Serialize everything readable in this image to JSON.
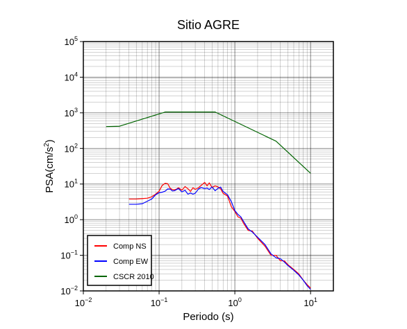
{
  "chart_data": {
    "type": "line",
    "title": "Sitio AGRE",
    "xlabel": "Periodo (s)",
    "ylabel_base": "PSA(cm/s",
    "ylabel_sup": "2",
    "ylabel_close": ")",
    "x_scale": "log",
    "y_scale": "log",
    "xlim": [
      0.01,
      20
    ],
    "ylim": [
      0.01,
      100000
    ],
    "grid": true,
    "legend_position": "bottom-left",
    "x_ticks": [
      {
        "value": 0.01,
        "base": "10",
        "exp": "−2"
      },
      {
        "value": 0.1,
        "base": "10",
        "exp": "−1"
      },
      {
        "value": 1,
        "base": "10",
        "exp": "0"
      },
      {
        "value": 10,
        "base": "10",
        "exp": "1"
      }
    ],
    "y_ticks": [
      {
        "value": 0.01,
        "base": "10",
        "exp": "−2"
      },
      {
        "value": 0.1,
        "base": "10",
        "exp": "−1"
      },
      {
        "value": 1,
        "base": "10",
        "exp": "0"
      },
      {
        "value": 10,
        "base": "10",
        "exp": "1"
      },
      {
        "value": 100,
        "base": "10",
        "exp": "2"
      },
      {
        "value": 1000,
        "base": "10",
        "exp": "3"
      },
      {
        "value": 10000,
        "base": "10",
        "exp": "4"
      },
      {
        "value": 100000,
        "base": "10",
        "exp": "5"
      }
    ],
    "series": [
      {
        "name": "Comp NS",
        "color": "#ff0000",
        "x": [
          0.04,
          0.05,
          0.06,
          0.07,
          0.08,
          0.09,
          0.1,
          0.11,
          0.12,
          0.13,
          0.14,
          0.15,
          0.16,
          0.17,
          0.18,
          0.2,
          0.22,
          0.24,
          0.26,
          0.28,
          0.3,
          0.33,
          0.36,
          0.4,
          0.43,
          0.46,
          0.5,
          0.55,
          0.6,
          0.65,
          0.7,
          0.8,
          0.9,
          1.0,
          1.1,
          1.2,
          1.3,
          1.5,
          1.7,
          2.0,
          2.5,
          3.0,
          3.5,
          4.0,
          4.5,
          5.0,
          6.0,
          7.0,
          8.0,
          9.0,
          10.0
        ],
        "y": [
          3.8,
          3.8,
          3.9,
          4.0,
          4.4,
          5.2,
          6.3,
          9.2,
          10.5,
          10.2,
          7.6,
          7.0,
          6.9,
          7.2,
          7.9,
          6.7,
          8.5,
          7.4,
          6.2,
          7.9,
          7.1,
          7.8,
          9.2,
          11.1,
          8.9,
          10.8,
          8.0,
          8.9,
          8.3,
          7.3,
          5.5,
          4.6,
          2.3,
          1.7,
          1.2,
          1.1,
          0.8,
          0.5,
          0.48,
          0.3,
          0.18,
          0.1,
          0.1,
          0.07,
          0.07,
          0.055,
          0.04,
          0.03,
          0.02,
          0.015,
          0.012
        ]
      },
      {
        "name": "Comp EW",
        "color": "#0000ff",
        "x": [
          0.04,
          0.05,
          0.06,
          0.07,
          0.08,
          0.09,
          0.1,
          0.11,
          0.12,
          0.13,
          0.14,
          0.15,
          0.16,
          0.17,
          0.18,
          0.2,
          0.22,
          0.24,
          0.26,
          0.28,
          0.3,
          0.33,
          0.36,
          0.4,
          0.43,
          0.46,
          0.5,
          0.55,
          0.6,
          0.65,
          0.7,
          0.8,
          0.9,
          1.0,
          1.1,
          1.2,
          1.3,
          1.5,
          1.7,
          2.0,
          2.5,
          3.0,
          3.5,
          4.0,
          4.5,
          5.0,
          6.0,
          7.0,
          8.0,
          9.0,
          10.0
        ],
        "y": [
          2.7,
          2.7,
          2.8,
          3.3,
          3.8,
          5.0,
          5.7,
          5.9,
          6.3,
          7.3,
          7.2,
          6.4,
          6.5,
          7.0,
          7.5,
          6.0,
          6.7,
          5.2,
          5.6,
          5.2,
          5.5,
          7.2,
          8.0,
          7.4,
          7.7,
          7.0,
          8.3,
          6.5,
          7.6,
          8.2,
          6.2,
          5.0,
          3.2,
          1.8,
          1.4,
          1.2,
          0.9,
          0.55,
          0.45,
          0.32,
          0.2,
          0.11,
          0.085,
          0.08,
          0.065,
          0.052,
          0.038,
          0.028,
          0.02,
          0.014,
          0.011
        ]
      },
      {
        "name": "CSCR 2010",
        "color": "#006400",
        "x": [
          0.02,
          0.03,
          0.12,
          0.55,
          3.5,
          10.0
        ],
        "y": [
          410,
          420,
          1050,
          1050,
          160,
          20
        ]
      }
    ]
  }
}
